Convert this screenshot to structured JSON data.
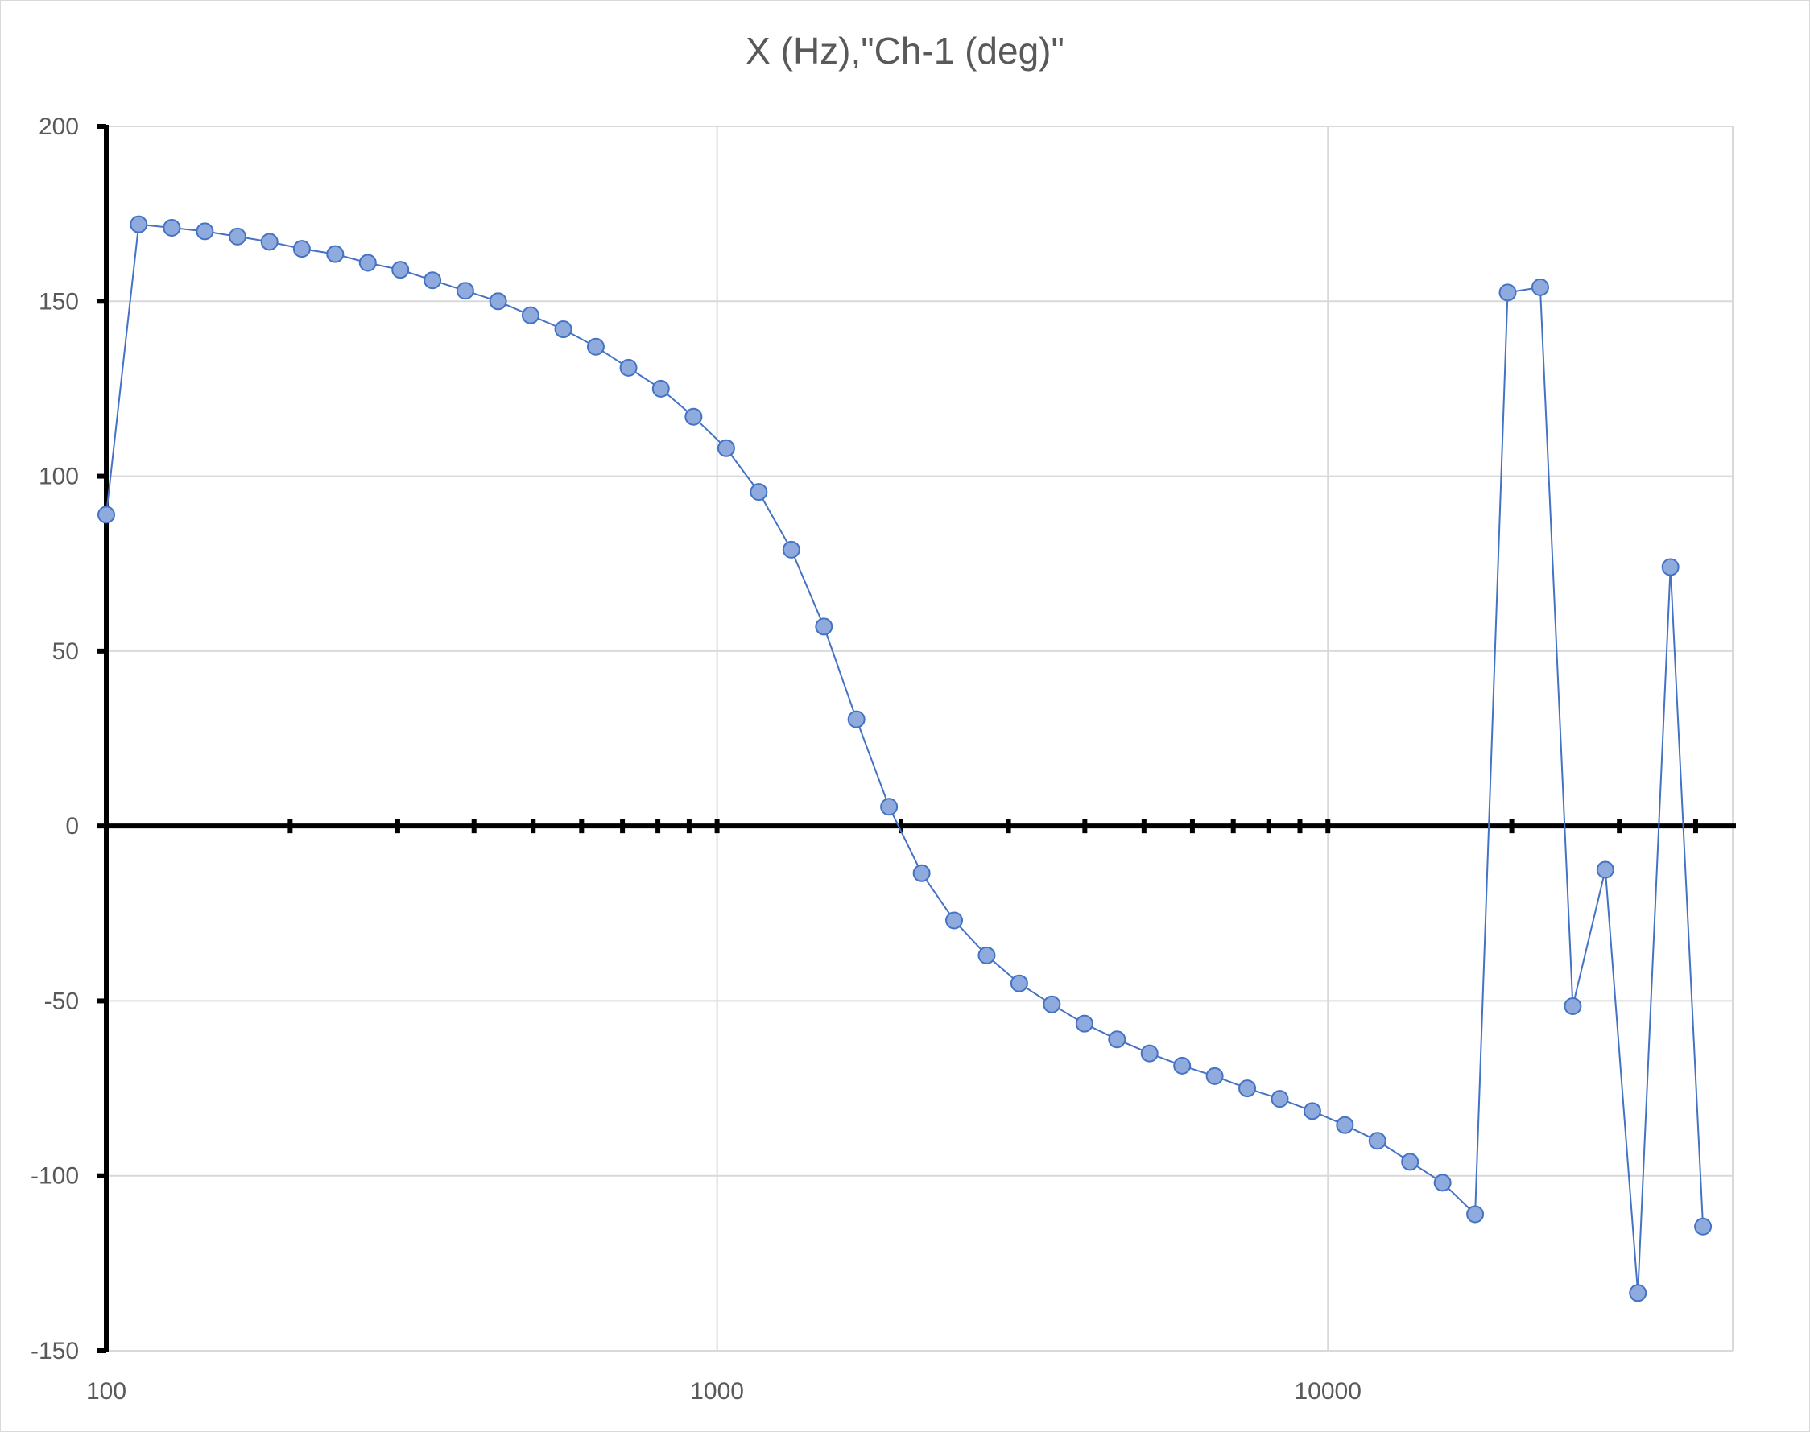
{
  "chart_data": {
    "type": "scatter",
    "title": "X (Hz),\"Ch-1 (deg)\"",
    "xlabel": "",
    "ylabel": "",
    "x_scale": "log",
    "xlim": [
      100,
      46000
    ],
    "ylim": [
      -150,
      200
    ],
    "x_ticks": [
      "100",
      "1000",
      "10000"
    ],
    "y_ticks": [
      "200",
      "150",
      "100",
      "50",
      "0",
      "-50",
      "-100",
      "-150"
    ],
    "grid": true,
    "legend": "none",
    "series_color": "#8faadc",
    "line_color": "#4472c4",
    "x": [
      100,
      113,
      128,
      145,
      164,
      185,
      209,
      237,
      268,
      303,
      342,
      387,
      438,
      495,
      560,
      633,
      716,
      809,
      915,
      1035,
      1170,
      1323,
      1496,
      1691,
      1912,
      2162,
      2444,
      2763,
      3124,
      3532,
      3994,
      4516,
      5105,
      5772,
      6526,
      7378,
      8341,
      9431,
      10662,
      12054,
      13628,
      15408,
      17420,
      19694,
      22266,
      25173,
      28460,
      32176,
      36377,
      41126
    ],
    "y": [
      89,
      172,
      171,
      170,
      168.5,
      167,
      165,
      163.5,
      161,
      159,
      156,
      153,
      150,
      146,
      142,
      137,
      131,
      125,
      117,
      108,
      95.5,
      79,
      57,
      30.5,
      5.5,
      -13.5,
      -27,
      -37,
      -45,
      -51,
      -56.5,
      -61,
      -65,
      -68.5,
      -71.5,
      -75,
      -78,
      -81.5,
      -85.5,
      -90,
      -96,
      -102,
      -111,
      152.5,
      154,
      -51.5,
      -12.5,
      -133.5,
      74,
      -114.5
    ]
  }
}
